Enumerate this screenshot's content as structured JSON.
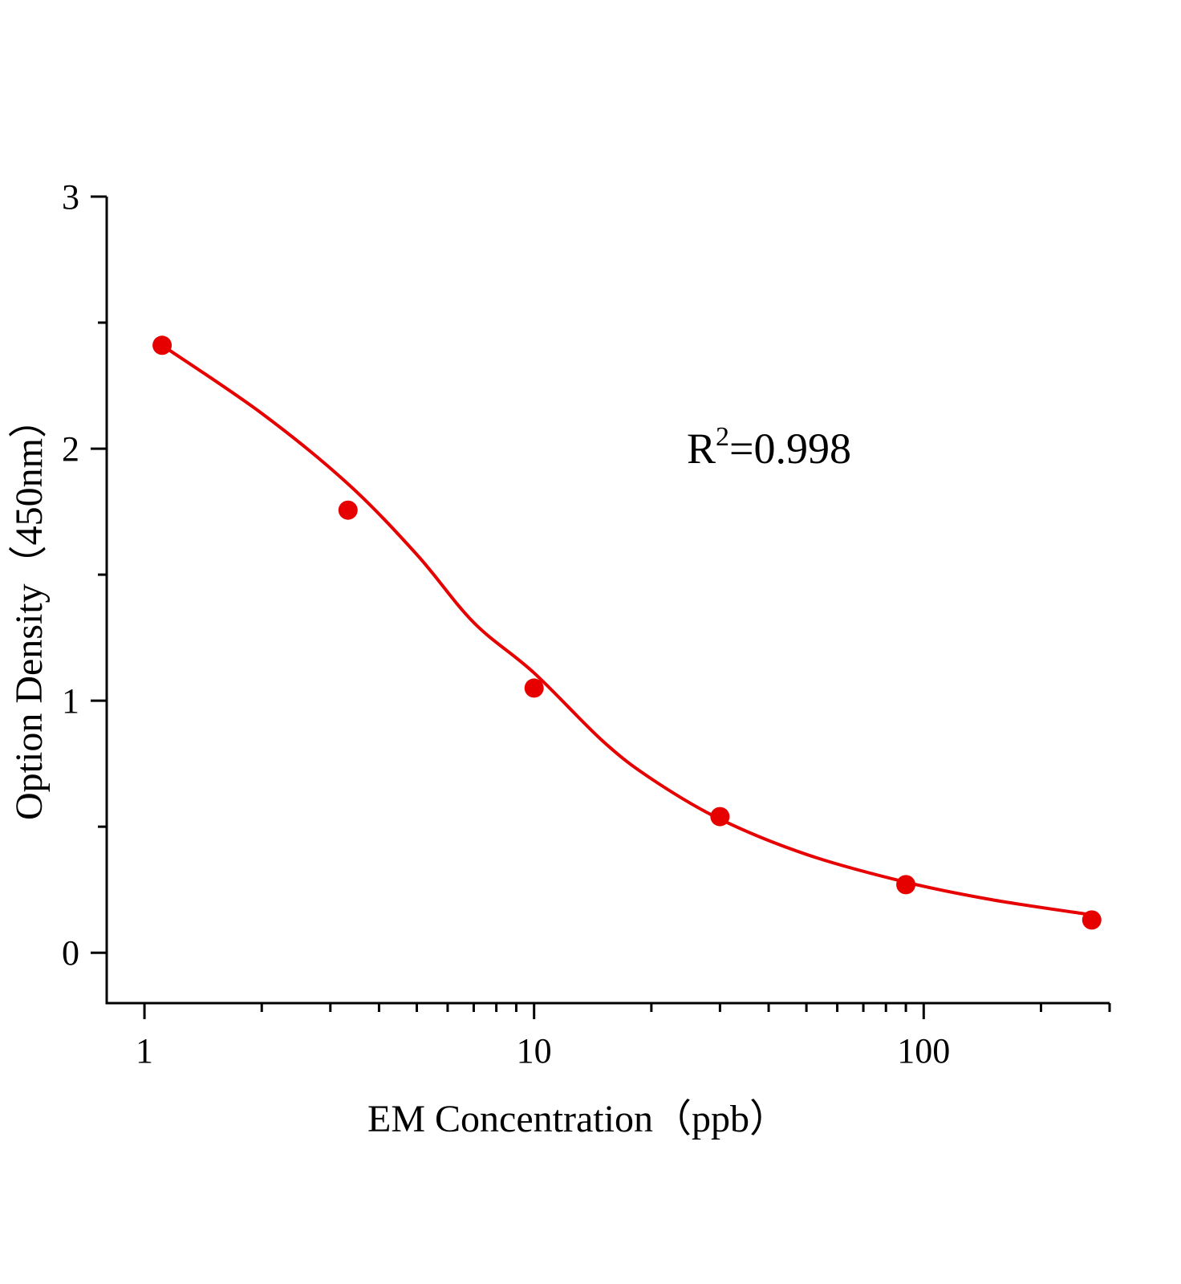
{
  "chart_data": {
    "type": "scatter",
    "x_label": "EM Concentration（ppb）",
    "y_label": "Option Density（450nm）",
    "annotation": [
      "R",
      "2",
      "=0.998"
    ],
    "x": [
      1.11,
      3.33,
      10,
      30,
      90,
      270
    ],
    "values": [
      2.41,
      1.756,
      1.05,
      0.54,
      0.27,
      0.13
    ],
    "color": "#e60000",
    "fit": {
      "x": [
        1.11,
        2,
        3.33,
        5,
        7,
        10,
        15,
        20,
        30,
        50,
        90,
        150,
        270
      ],
      "y": [
        2.41,
        2.14,
        1.86,
        1.58,
        1.31,
        1.11,
        0.84,
        0.69,
        0.53,
        0.39,
        0.28,
        0.21,
        0.15
      ]
    },
    "xlog": true,
    "xlim": [
      0.8,
      300
    ],
    "xticks": [
      1,
      10,
      100
    ],
    "xminorticks": [
      2,
      3,
      4,
      5,
      6,
      7,
      8,
      9,
      20,
      30,
      40,
      50,
      60,
      70,
      80,
      90,
      200,
      300
    ],
    "ylim": [
      -0.2,
      3
    ],
    "yticks": [
      0,
      1,
      2,
      3
    ],
    "yminorticks": [
      0.5,
      1.5,
      2.5
    ]
  }
}
